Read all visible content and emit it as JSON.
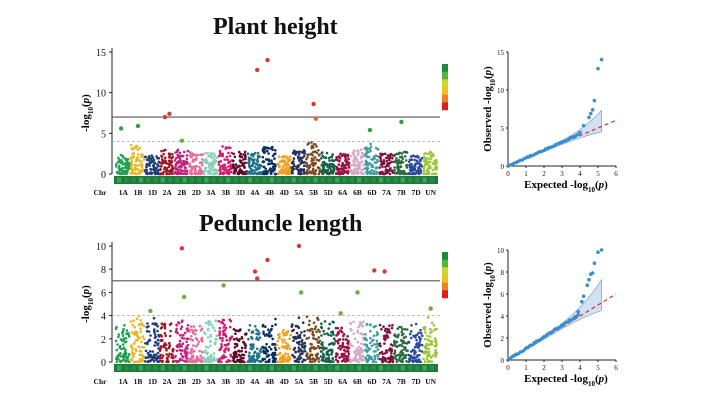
{
  "titles": [
    "Plant height",
    "Peduncle length"
  ],
  "chart_data": [
    {
      "type": "scatter",
      "subtype": "manhattan",
      "title": "Plant height",
      "ylabel": "-log10(p)",
      "ylim": [
        0,
        15
      ],
      "yticks": [
        0,
        5,
        10,
        15
      ],
      "threshold": 7.0,
      "suggestive": 4.0,
      "chromosomes": [
        "1A",
        "1B",
        "1D",
        "2A",
        "2B",
        "2D",
        "3A",
        "3B",
        "3D",
        "4A",
        "4B",
        "4D",
        "5A",
        "5B",
        "5D",
        "6A",
        "6B",
        "6D",
        "7A",
        "7B",
        "7D",
        "UN"
      ],
      "xprefix": "Chr",
      "chrom_colors": [
        "#20a050",
        "#e8b828",
        "#1c3f78",
        "#a01828",
        "#c4207c",
        "#e86a9a",
        "#88d0b8",
        "#d41a6e",
        "#5e0a28",
        "#1e7088",
        "#0a3060",
        "#f0a020",
        "#24305e",
        "#7a4a20",
        "#146048",
        "#9a1040",
        "#d6a8c8",
        "#40a0a0",
        "#801040",
        "#2a6c40",
        "#2a4aa0",
        "#9ac838"
      ],
      "base_heights": [
        2.4,
        3.6,
        2.3,
        3.2,
        3.0,
        2.6,
        2.6,
        3.5,
        2.7,
        2.6,
        3.4,
        2.2,
        2.9,
        3.8,
        2.4,
        2.5,
        3.0,
        3.4,
        2.6,
        2.7,
        2.4,
        2.9
      ],
      "peaks": [
        {
          "chrom": "1A",
          "y": 5.6,
          "color": "#2ea043"
        },
        {
          "chrom": "1B",
          "y": 5.9,
          "color": "#2ea043"
        },
        {
          "chrom": "2A",
          "y": 7.4,
          "color": "#d43c3c"
        },
        {
          "chrom": "2A",
          "y": 7.0,
          "color": "#d43c3c"
        },
        {
          "chrom": "2B",
          "y": 4.1,
          "color": "#68b038"
        },
        {
          "chrom": "4A",
          "y": 12.8,
          "color": "#d43c3c"
        },
        {
          "chrom": "4B",
          "y": 14.0,
          "color": "#d43c3c"
        },
        {
          "chrom": "5B",
          "y": 8.6,
          "color": "#d43c3c"
        },
        {
          "chrom": "5B",
          "y": 6.8,
          "color": "#e4623a"
        },
        {
          "chrom": "6D",
          "y": 5.4,
          "color": "#2ea043"
        },
        {
          "chrom": "7B",
          "y": 6.4,
          "color": "#2ea043"
        }
      ],
      "qq": {
        "xlabel": "Expected -log10(p)",
        "ylabel": "Observed -log10(p)",
        "xlim": [
          0,
          6
        ],
        "ylim": [
          0,
          15
        ],
        "xticks": [
          0,
          1,
          2,
          3,
          4,
          5,
          6
        ],
        "yticks": [
          0,
          5,
          10,
          15
        ],
        "tail_points": [
          [
            4.0,
            4.4
          ],
          [
            4.2,
            5.3
          ],
          [
            4.5,
            6.4
          ],
          [
            4.6,
            6.9
          ],
          [
            4.7,
            7.4
          ],
          [
            4.8,
            8.6
          ],
          [
            5.0,
            12.8
          ],
          [
            5.2,
            14.0
          ]
        ]
      }
    },
    {
      "type": "scatter",
      "subtype": "manhattan",
      "title": "Peduncle length",
      "ylabel": "-log10(p)",
      "ylim": [
        0,
        10
      ],
      "yticks": [
        0,
        2,
        4,
        6,
        8,
        10
      ],
      "threshold": 7.0,
      "suggestive": 4.0,
      "chromosomes": [
        "1A",
        "1B",
        "1D",
        "2A",
        "2B",
        "2D",
        "3A",
        "3B",
        "3D",
        "4A",
        "4B",
        "4D",
        "5A",
        "5B",
        "5D",
        "6A",
        "6B",
        "6D",
        "7A",
        "7B",
        "7D",
        "UN"
      ],
      "xprefix": "Chr",
      "chrom_colors": [
        "#20a050",
        "#e8b828",
        "#1c3f78",
        "#a01828",
        "#c4207c",
        "#e86a9a",
        "#88d0b8",
        "#d41a6e",
        "#5e0a28",
        "#1e7088",
        "#0a3060",
        "#f0a020",
        "#24305e",
        "#7a4a20",
        "#146048",
        "#9a1040",
        "#d6a8c8",
        "#40a0a0",
        "#801040",
        "#2a6c40",
        "#2a4aa0",
        "#9ac838"
      ],
      "base_heights": [
        3.0,
        3.8,
        3.4,
        3.4,
        3.6,
        3.1,
        3.6,
        3.7,
        3.2,
        3.5,
        3.3,
        2.8,
        3.4,
        3.9,
        3.6,
        3.0,
        3.5,
        3.3,
        3.2,
        3.1,
        2.9,
        3.5
      ],
      "peaks": [
        {
          "chrom": "1D",
          "y": 4.4,
          "color": "#68b038"
        },
        {
          "chrom": "2B",
          "y": 9.8,
          "color": "#d43c3c"
        },
        {
          "chrom": "2B",
          "y": 5.6,
          "color": "#68b038"
        },
        {
          "chrom": "3B",
          "y": 6.6,
          "color": "#68b038"
        },
        {
          "chrom": "4A",
          "y": 7.8,
          "color": "#d43c3c"
        },
        {
          "chrom": "4A",
          "y": 7.2,
          "color": "#d43c3c"
        },
        {
          "chrom": "4B",
          "y": 8.8,
          "color": "#d43c3c"
        },
        {
          "chrom": "5A",
          "y": 10.0,
          "color": "#d43c3c"
        },
        {
          "chrom": "5A",
          "y": 6.0,
          "color": "#68b038"
        },
        {
          "chrom": "6A",
          "y": 4.2,
          "color": "#68b038"
        },
        {
          "chrom": "6B",
          "y": 6.0,
          "color": "#68b038"
        },
        {
          "chrom": "6D",
          "y": 7.9,
          "color": "#d43c3c"
        },
        {
          "chrom": "7A",
          "y": 7.8,
          "color": "#d43c3c"
        },
        {
          "chrom": "UN",
          "y": 4.6,
          "color": "#68b038"
        }
      ],
      "qq": {
        "xlabel": "Expected -log10(p)",
        "ylabel": "Observed -log10(p)",
        "xlim": [
          0,
          6
        ],
        "ylim": [
          0,
          10
        ],
        "xticks": [
          0,
          1,
          2,
          3,
          4,
          5,
          6
        ],
        "yticks": [
          0,
          2,
          4,
          6,
          8,
          10
        ],
        "tail_points": [
          [
            3.9,
            4.4
          ],
          [
            4.1,
            5.3
          ],
          [
            4.2,
            5.8
          ],
          [
            4.4,
            6.8
          ],
          [
            4.5,
            7.3
          ],
          [
            4.6,
            7.8
          ],
          [
            4.7,
            7.9
          ],
          [
            4.8,
            8.8
          ],
          [
            5.0,
            9.8
          ],
          [
            5.2,
            10.0
          ]
        ]
      }
    }
  ],
  "legend_gradient": [
    "#1a8a3a",
    "#5cb040",
    "#c8d830",
    "#f0c020",
    "#f08020",
    "#d82020"
  ],
  "colors": {
    "threshold_line": "#555555",
    "suggestive_line": "#aaaaaa",
    "qq_points": "#3a8fd0",
    "qq_diag": "#d03030",
    "qq_band": "#a8c8e8"
  }
}
